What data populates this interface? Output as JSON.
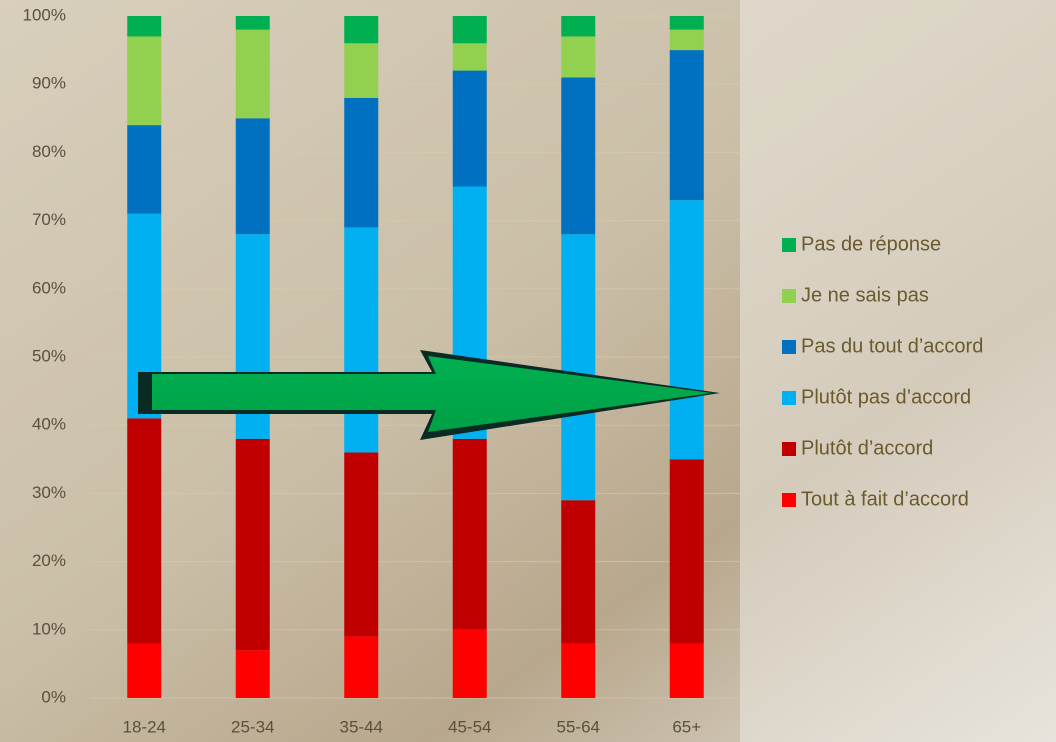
{
  "chart_data": {
    "type": "stacked-bar",
    "categories": [
      "18-24",
      "25-34",
      "35-44",
      "45-54",
      "55-64",
      "65+"
    ],
    "series": [
      {
        "name": "Tout à fait d’accord",
        "color": "#ff0000",
        "values": [
          8,
          7,
          9,
          10,
          8,
          8
        ]
      },
      {
        "name": "Plutôt d’accord",
        "color": "#c00000",
        "values": [
          33,
          31,
          27,
          28,
          21,
          27
        ]
      },
      {
        "name": "Plutôt pas d’accord",
        "color": "#00b0f0",
        "values": [
          30,
          30,
          33,
          37,
          39,
          38
        ]
      },
      {
        "name": "Pas du tout d’accord",
        "color": "#0070c0",
        "values": [
          13,
          17,
          19,
          17,
          23,
          22
        ]
      },
      {
        "name": "Je ne sais pas",
        "color": "#92d050",
        "values": [
          13,
          13,
          8,
          4,
          6,
          3
        ]
      },
      {
        "name": "Pas de réponse",
        "color": "#00b050",
        "values": [
          3,
          2,
          4,
          4,
          3,
          2
        ]
      }
    ],
    "ylim": [
      0,
      100
    ],
    "yticks": [
      {
        "value": 0,
        "label": "0%"
      },
      {
        "value": 10,
        "label": "10%"
      },
      {
        "value": 20,
        "label": "20%"
      },
      {
        "value": 30,
        "label": "30%"
      },
      {
        "value": 40,
        "label": "40%"
      },
      {
        "value": 50,
        "label": "50%"
      },
      {
        "value": 60,
        "label": "60%"
      },
      {
        "value": 70,
        "label": "70%"
      },
      {
        "value": 80,
        "label": "80%"
      },
      {
        "value": 90,
        "label": "90%"
      },
      {
        "value": 100,
        "label": "100%"
      }
    ],
    "grid": true,
    "legend": "right"
  }
}
